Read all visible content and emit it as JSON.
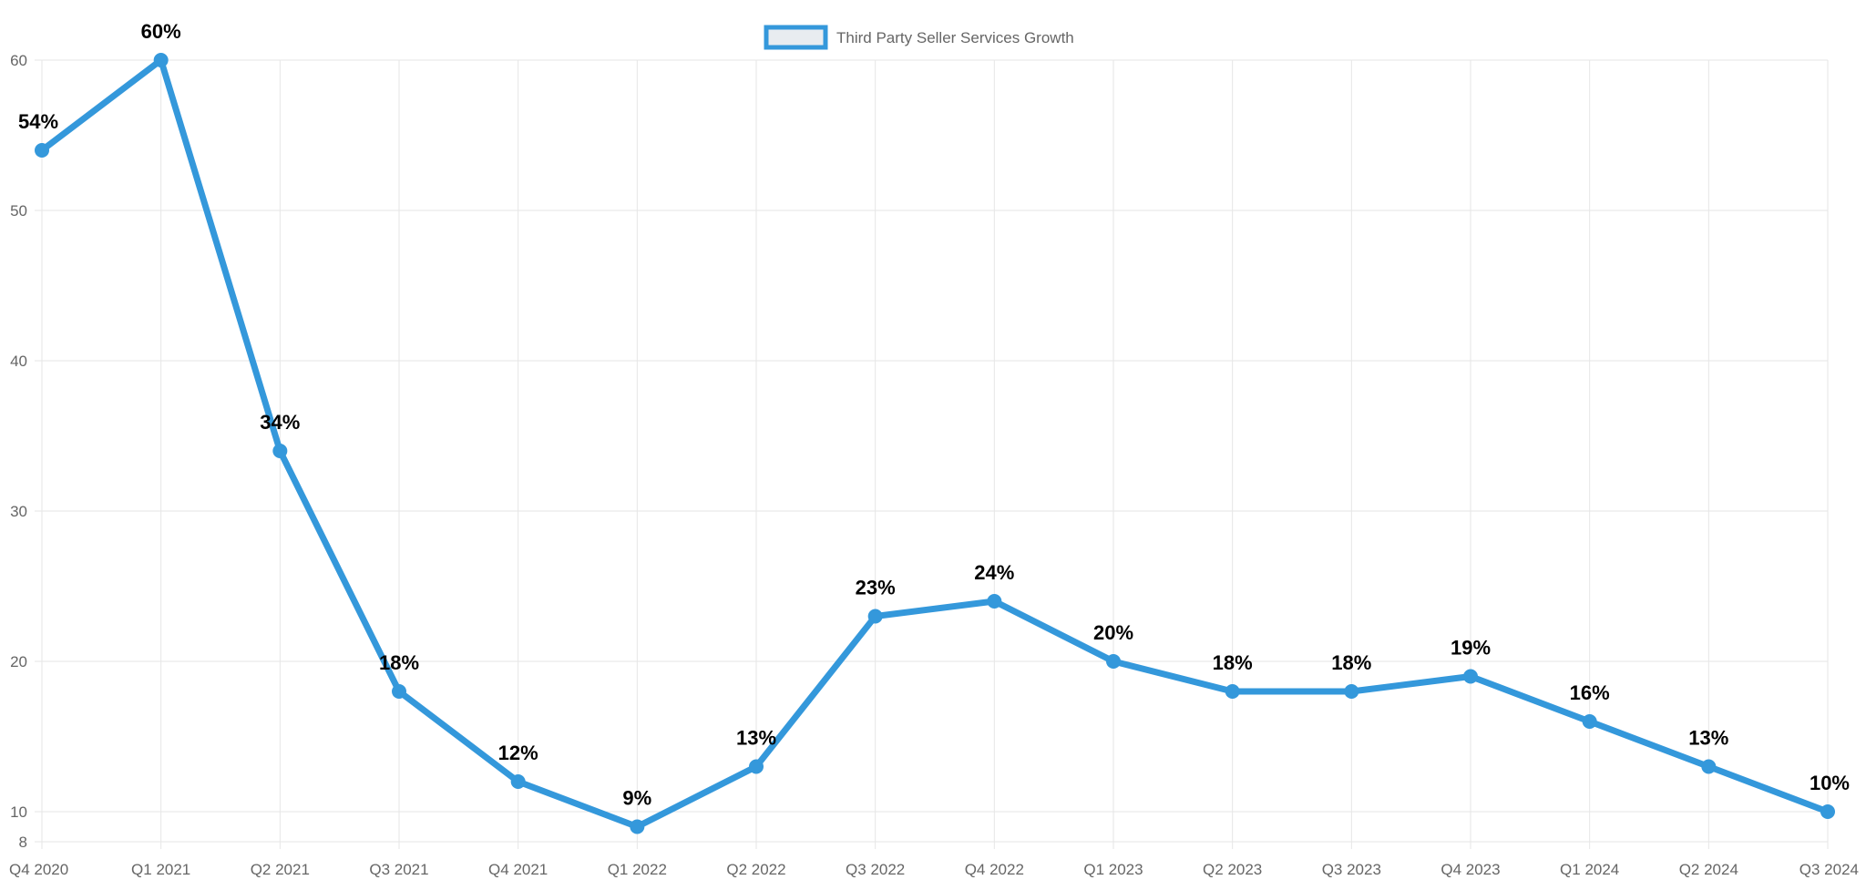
{
  "chart_data": {
    "type": "line",
    "categories": [
      "Q4 2020",
      "Q1 2021",
      "Q2 2021",
      "Q3 2021",
      "Q4 2021",
      "Q1 2022",
      "Q2 2022",
      "Q3 2022",
      "Q4 2022",
      "Q1 2023",
      "Q2 2023",
      "Q3 2023",
      "Q4 2023",
      "Q1 2024",
      "Q2 2024",
      "Q3 2024"
    ],
    "series": [
      {
        "name": "Third Party Seller Services Growth",
        "values": [
          54,
          60,
          34,
          18,
          12,
          9,
          13,
          23,
          24,
          20,
          18,
          18,
          19,
          16,
          13,
          10
        ],
        "data_labels": [
          "54%",
          "60%",
          "34%",
          "18%",
          "12%",
          "9%",
          "13%",
          "23%",
          "24%",
          "20%",
          "18%",
          "18%",
          "19%",
          "16%",
          "13%",
          "10%"
        ]
      }
    ],
    "y_ticks": [
      8,
      10,
      20,
      30,
      40,
      50,
      60
    ],
    "ylim": [
      8,
      60
    ],
    "grid": true,
    "legend_position": "top",
    "colors": {
      "line": "#3498db",
      "legend_fill": "#e8ecf0",
      "grid": "#e6e6e6",
      "text": "#666666"
    }
  }
}
